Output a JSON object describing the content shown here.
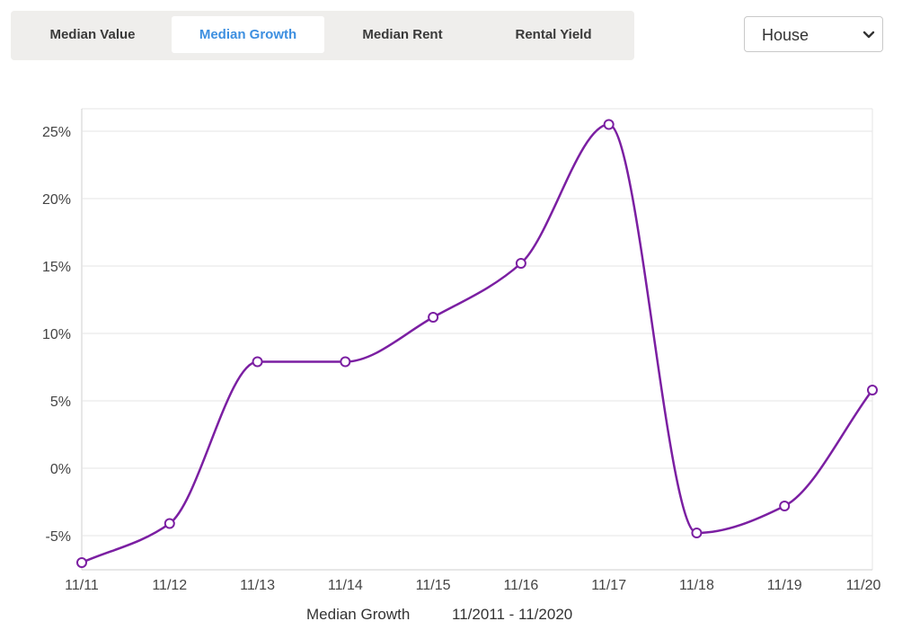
{
  "tabs": [
    {
      "label": "Median Value",
      "active": false
    },
    {
      "label": "Median Growth",
      "active": true
    },
    {
      "label": "Median Rent",
      "active": false
    },
    {
      "label": "Rental Yield",
      "active": false
    }
  ],
  "property_type": {
    "selected": "House"
  },
  "colors": {
    "line": "#7b1fa2",
    "accent": "#3d8fe0",
    "grid": "#e6e6e6"
  },
  "footer": {
    "series_label": "Median Growth",
    "range_label": "11/2011 - 11/2020"
  },
  "chart_data": {
    "type": "line",
    "categories": [
      "11/11",
      "11/12",
      "11/13",
      "11/14",
      "11/15",
      "11/16",
      "11/17",
      "11/18",
      "11/19",
      "11/20"
    ],
    "series": [
      {
        "name": "Median Growth",
        "values": [
          -7.0,
          -4.1,
          7.9,
          7.9,
          11.2,
          15.2,
          25.5,
          -4.8,
          -2.8,
          5.8
        ]
      }
    ],
    "ylim": [
      -7,
      26.5
    ],
    "yticks": [
      -5,
      0,
      5,
      10,
      15,
      20,
      25
    ],
    "yticklabels": [
      "-5%",
      "0%",
      "5%",
      "10%",
      "15%",
      "20%",
      "25%"
    ],
    "grid": true,
    "xlabel": "",
    "ylabel": ""
  }
}
